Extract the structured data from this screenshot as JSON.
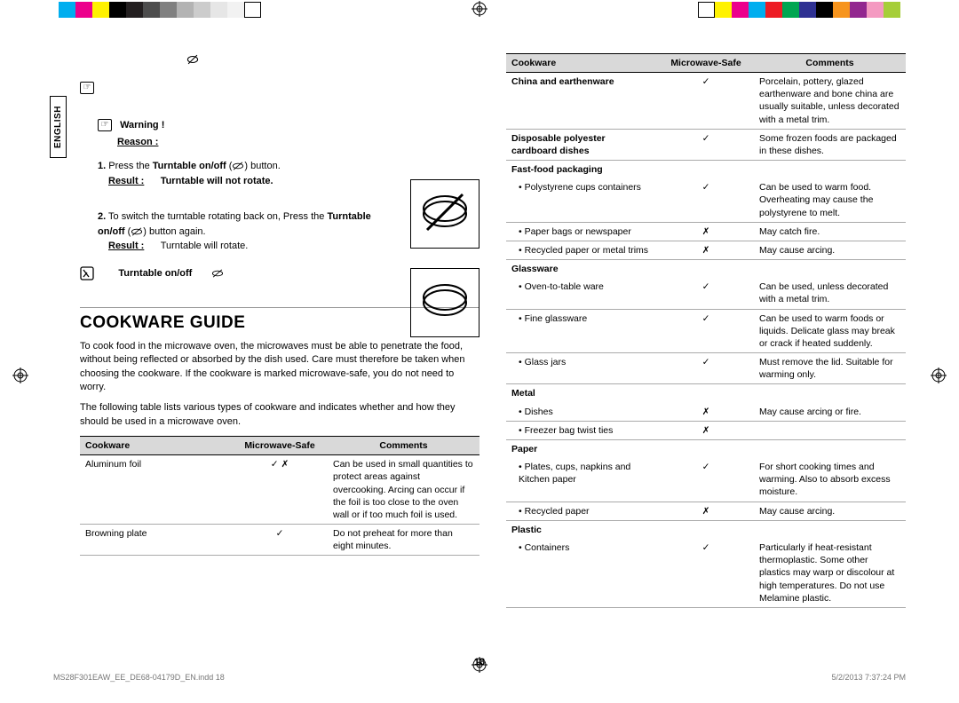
{
  "colorbar_left": [
    "#00aeef",
    "#ec008c",
    "#fff200",
    "#000000",
    "#231f20",
    "#4d4d4d",
    "#808080",
    "#b3b3b3",
    "#cccccc",
    "#e6e6e6",
    "#f2f2f2",
    "#ffffff"
  ],
  "colorbar_right": [
    "#ffffff",
    "#fff200",
    "#ec008c",
    "#00aeef",
    "#ed1c24",
    "#00a651",
    "#2e3192",
    "#000000",
    "#f7941d",
    "#92278f",
    "#f49ac1",
    "#a6ce39"
  ],
  "sideTab": "ENGLISH",
  "warn": {
    "title": "Warning !",
    "reason": "Reason :",
    "step1_a": "Press the ",
    "step1_b": "Turntable on/off",
    "step1_c": " (",
    "step1_d": ") button.",
    "result_label": "Result :",
    "result1": "Turntable will not rotate.",
    "step2_a": "To switch the turntable rotating back on, Press the ",
    "step2_b": "Turntable on/off",
    "step2_c": " (",
    "step2_d": ") button again.",
    "result2": "Turntable will rotate.",
    "note": "Turntable on/off"
  },
  "guide": {
    "title": "COOKWARE GUIDE",
    "p1": "To cook food in the microwave oven, the microwaves must be able to penetrate the food, without being reflected or absorbed by the dish used. Care must therefore be taken when choosing the cookware. If the cookware is marked microwave-safe, you do not need to worry.",
    "p2": "The following table lists various types of cookware and indicates whether and how they should be used in a microwave oven."
  },
  "table_headers": {
    "a": "Cookware",
    "b": "Microwave-Safe",
    "c": "Comments"
  },
  "table1": [
    {
      "n": "Aluminum foil",
      "s": "✓ ✗",
      "c": "Can be used in small quantities to protect areas against overcooking. Arcing can occur if the foil is too close to the oven wall or if too much foil is used."
    },
    {
      "n": "Browning plate",
      "s": "✓",
      "c": "Do not preheat for more than eight minutes."
    }
  ],
  "table2": [
    {
      "cat": true,
      "n": "China and earthenware",
      "s": "✓",
      "c": "Porcelain, pottery, glazed earthenware and bone china are usually suitable, unless decorated with a metal trim."
    },
    {
      "cat": true,
      "n": "Disposable polyester cardboard dishes",
      "s": "✓",
      "c": "Some frozen foods are packaged in these dishes."
    },
    {
      "cat": true,
      "nob": true,
      "n": "Fast-food packaging",
      "s": "",
      "c": ""
    },
    {
      "sub": true,
      "n": "Polystyrene cups containers",
      "s": "✓",
      "c": "Can be used to warm food. Overheating may cause the polystyrene to melt."
    },
    {
      "sub": true,
      "n": "Paper bags or newspaper",
      "s": "✗",
      "c": "May catch fire."
    },
    {
      "sub": true,
      "n": "Recycled paper or metal trims",
      "s": "✗",
      "c": "May cause arcing."
    },
    {
      "cat": true,
      "nob": true,
      "n": "Glassware",
      "s": "",
      "c": ""
    },
    {
      "sub": true,
      "n": "Oven-to-table ware",
      "s": "✓",
      "c": "Can be used, unless decorated with a metal trim."
    },
    {
      "sub": true,
      "n": "Fine glassware",
      "s": "✓",
      "c": "Can be used to warm foods or liquids. Delicate glass may break or crack if heated suddenly."
    },
    {
      "sub": true,
      "n": "Glass jars",
      "s": "✓",
      "c": "Must remove the lid. Suitable for warming only."
    },
    {
      "cat": true,
      "nob": true,
      "n": "Metal",
      "s": "",
      "c": ""
    },
    {
      "sub": true,
      "n": "Dishes",
      "s": "✗",
      "c": "May cause arcing or fire."
    },
    {
      "sub": true,
      "n": "Freezer bag twist ties",
      "s": "✗",
      "c": ""
    },
    {
      "cat": true,
      "nob": true,
      "n": "Paper",
      "s": "",
      "c": ""
    },
    {
      "sub": true,
      "n": "Plates, cups, napkins and Kitchen paper",
      "s": "✓",
      "c": "For short cooking times and warming. Also to absorb excess moisture."
    },
    {
      "sub": true,
      "n": "Recycled paper",
      "s": "✗",
      "c": "May cause arcing."
    },
    {
      "cat": true,
      "nob": true,
      "n": "Plastic",
      "s": "",
      "c": ""
    },
    {
      "sub": true,
      "n": "Containers",
      "s": "✓",
      "c": "Particularly if heat-resistant thermoplastic. Some other plastics may warp or discolour at high temperatures. Do not use Melamine plastic."
    }
  ],
  "pagenum": "18",
  "footer": {
    "left": "MS28F301EAW_EE_DE68-04179D_EN.indd   18",
    "right": "5/2/2013   7:37:24 PM"
  }
}
